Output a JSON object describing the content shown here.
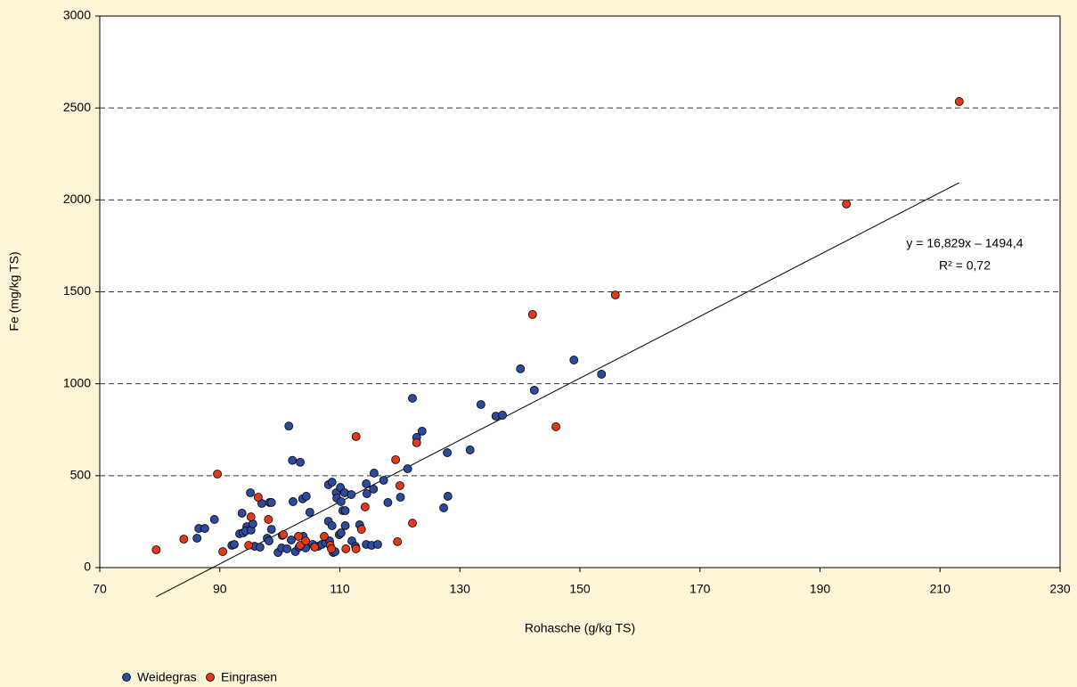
{
  "chart_data": {
    "type": "scatter",
    "xlabel": "Rohasche (g/kg TS)",
    "ylabel": "Fe (mg/kg TS)",
    "xlim": [
      70,
      230
    ],
    "xticks": [
      70,
      90,
      110,
      130,
      150,
      170,
      190,
      210,
      230
    ],
    "ylim": [
      0,
      3000
    ],
    "yticks": [
      0,
      500,
      1000,
      1500,
      2000,
      2500,
      3000
    ],
    "grid": true,
    "legend": "bottom-left",
    "annotations": [
      "y = 16,829x – 1494,4",
      "R² = 0,72"
    ],
    "trendline": {
      "slope": 16.829,
      "intercept": -1494.4
    },
    "series": [
      {
        "name": "Weidegras",
        "color": "#2d4a9c",
        "x": [
          86.2,
          86.5,
          87.5,
          89.1,
          92.0,
          92.4,
          93.3,
          93.9,
          93.7,
          94.5,
          94.3,
          95.2,
          95.1,
          95.5,
          95.8,
          96.7,
          97.0,
          97.9,
          98.2,
          98.3,
          98.6,
          98.6,
          99.7,
          100.3,
          100.4,
          101.2,
          101.5,
          102.1,
          103.4,
          102.2,
          101.9,
          102.6,
          103.2,
          103.8,
          104.4,
          103.9,
          104.3,
          105.0,
          105.5,
          106.4,
          107.0,
          107.6,
          108.1,
          108.7,
          108.1,
          108.7,
          108.3,
          108.9,
          109.2,
          109.4,
          109.5,
          109.9,
          110.2,
          110.1,
          110.2,
          110.8,
          110.5,
          110.9,
          110.9,
          111.9,
          112.0,
          112.6,
          113.3,
          114.5,
          114.4,
          114.4,
          115.3,
          115.6,
          115.7,
          116.3,
          117.3,
          118.0,
          120.1,
          121.3,
          122.1,
          122.8,
          123.7,
          127.3,
          127.9,
          128.0,
          131.7,
          133.5,
          136.0,
          137.1,
          140.1,
          142.4,
          149.0,
          153.6
        ],
        "y": [
          160,
          213,
          213,
          262,
          121,
          126,
          184,
          189,
          296,
          223,
          199,
          204,
          407,
          238,
          116,
          111,
          349,
          160,
          145,
          354,
          354,
          208,
          82,
          107,
          175,
          102,
          770,
          583,
          573,
          359,
          150,
          87,
          111,
          374,
          388,
          170,
          107,
          301,
          126,
          116,
          126,
          136,
          451,
          465,
          252,
          228,
          145,
          82,
          87,
          407,
          378,
          179,
          189,
          436,
          359,
          407,
          310,
          310,
          228,
          397,
          145,
          116,
          233,
          402,
          456,
          126,
          121,
          427,
          514,
          126,
          475,
          354,
          383,
          538,
          921,
          708,
          742,
          325,
          625,
          388,
          640,
          887,
          824,
          829,
          1081,
          965,
          1129,
          1052
        ]
      },
      {
        "name": "Eingrasen",
        "color": "#e2391b",
        "x": [
          79.4,
          84.0,
          89.6,
          90.5,
          94.8,
          95.2,
          96.4,
          98.1,
          100.6,
          103.1,
          103.4,
          104.3,
          105.8,
          107.4,
          108.4,
          108.6,
          112.7,
          112.7,
          113.6,
          114.2,
          111.0,
          119.3,
          119.6,
          120.0,
          122.1,
          122.8,
          142.1,
          146.0,
          155.9,
          194.4,
          213.2
        ],
        "y": [
          97,
          155,
          509,
          87,
          121,
          276,
          383,
          262,
          179,
          170,
          121,
          145,
          111,
          170,
          121,
          102,
          713,
          102,
          208,
          330,
          102,
          587,
          141,
          446,
          242,
          679,
          1377,
          766,
          1483,
          1978,
          2535
        ]
      }
    ]
  }
}
